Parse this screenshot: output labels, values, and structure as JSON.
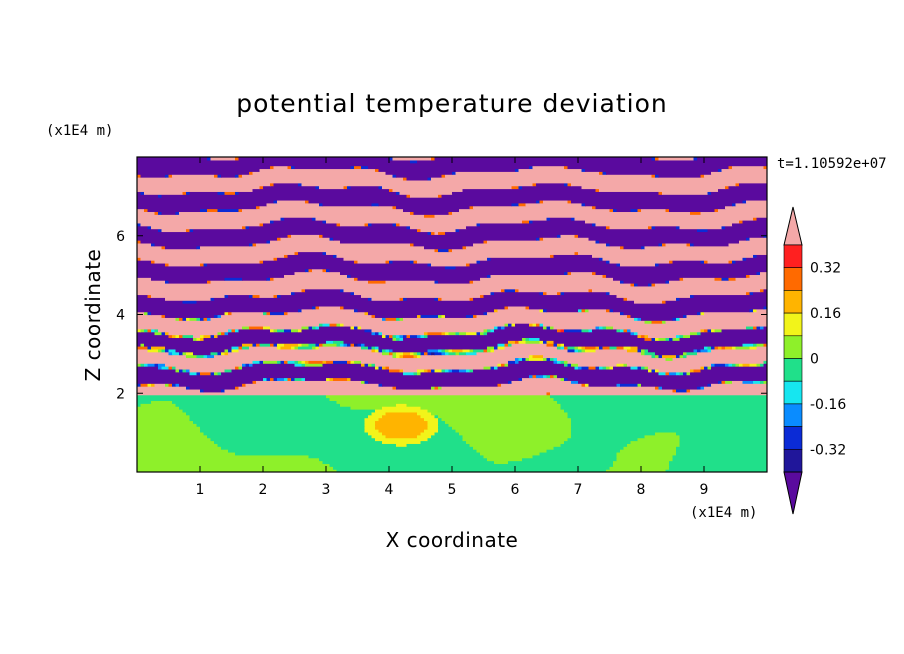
{
  "chart_data": {
    "type": "heatmap",
    "title": "potential temperature deviation",
    "xlabel": "X coordinate",
    "ylabel": "Z coordinate",
    "x_unit": "(x1E4 m)",
    "y_unit": "(x1E4 m)",
    "time_label": "t=1.10592e+07",
    "xlim": [
      0,
      10
    ],
    "ylim": [
      0,
      8
    ],
    "x_ticks": [
      "1",
      "2",
      "3",
      "4",
      "5",
      "6",
      "7",
      "8",
      "9"
    ],
    "y_ticks": [
      "2",
      "4",
      "6"
    ],
    "colorbar": {
      "levels": [
        -0.4,
        -0.32,
        -0.24,
        -0.16,
        -0.08,
        0,
        0.08,
        0.16,
        0.24,
        0.32,
        0.4
      ],
      "labels": [
        "0.32",
        "0.16",
        "0",
        "-0.16",
        "-0.32"
      ],
      "colors": [
        "#5a0a9e",
        "#20169a",
        "#0b2bd6",
        "#0a8cff",
        "#16e6f0",
        "#20e08a",
        "#8ef02a",
        "#f2f41a",
        "#ffb400",
        "#ff6a00",
        "#ff2020",
        "#f4a8a8"
      ],
      "extend": "both"
    },
    "regions": [
      {
        "zone": "lower layer (z < 2)",
        "dominant_value": 0.04,
        "secondary_value": -0.04
      },
      {
        "zone": "upper layer (z > 2)",
        "dominant_value": 0.4,
        "secondary_value": -0.4
      }
    ]
  }
}
